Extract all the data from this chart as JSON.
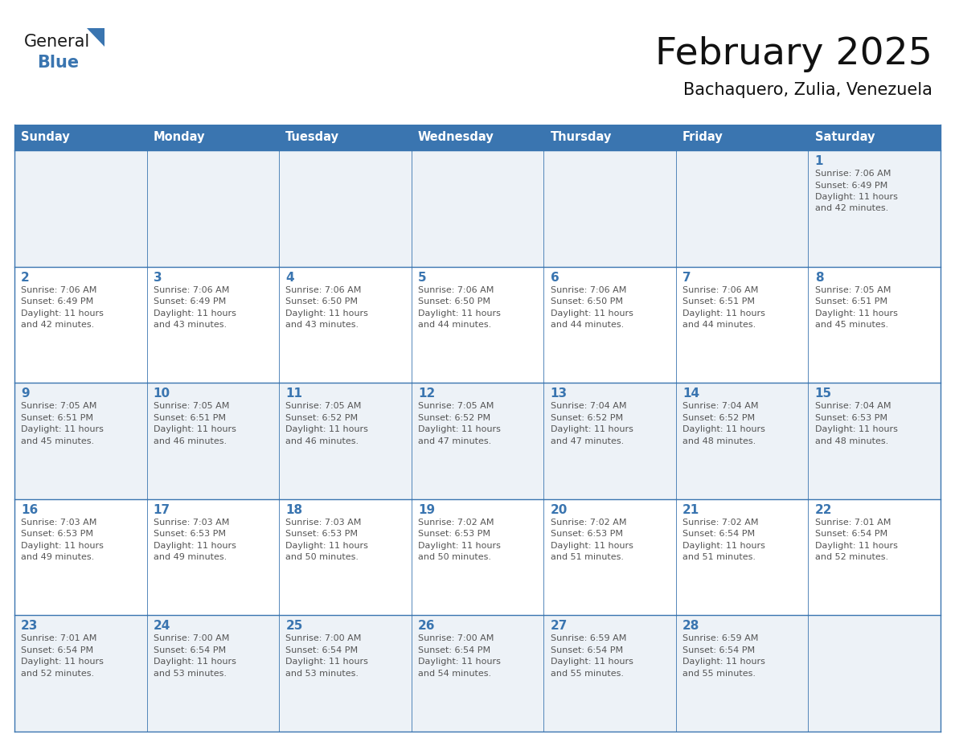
{
  "title": "February 2025",
  "subtitle": "Bachaquero, Zulia, Venezuela",
  "header_bg": "#3a75b0",
  "header_text": "#ffffff",
  "cell_bg_odd": "#edf2f7",
  "cell_bg_even": "#ffffff",
  "day_number_color": "#3a75b0",
  "text_color": "#555555",
  "border_color": "#3a75b0",
  "days_of_week": [
    "Sunday",
    "Monday",
    "Tuesday",
    "Wednesday",
    "Thursday",
    "Friday",
    "Saturday"
  ],
  "weeks": [
    [
      {
        "day": null,
        "sunrise": null,
        "sunset": null,
        "daylight_h": null,
        "daylight_m": null
      },
      {
        "day": null,
        "sunrise": null,
        "sunset": null,
        "daylight_h": null,
        "daylight_m": null
      },
      {
        "day": null,
        "sunrise": null,
        "sunset": null,
        "daylight_h": null,
        "daylight_m": null
      },
      {
        "day": null,
        "sunrise": null,
        "sunset": null,
        "daylight_h": null,
        "daylight_m": null
      },
      {
        "day": null,
        "sunrise": null,
        "sunset": null,
        "daylight_h": null,
        "daylight_m": null
      },
      {
        "day": null,
        "sunrise": null,
        "sunset": null,
        "daylight_h": null,
        "daylight_m": null
      },
      {
        "day": 1,
        "sunrise": "7:06 AM",
        "sunset": "6:49 PM",
        "daylight_h": "11 hours",
        "daylight_m": "and 42 minutes."
      }
    ],
    [
      {
        "day": 2,
        "sunrise": "7:06 AM",
        "sunset": "6:49 PM",
        "daylight_h": "11 hours",
        "daylight_m": "and 42 minutes."
      },
      {
        "day": 3,
        "sunrise": "7:06 AM",
        "sunset": "6:49 PM",
        "daylight_h": "11 hours",
        "daylight_m": "and 43 minutes."
      },
      {
        "day": 4,
        "sunrise": "7:06 AM",
        "sunset": "6:50 PM",
        "daylight_h": "11 hours",
        "daylight_m": "and 43 minutes."
      },
      {
        "day": 5,
        "sunrise": "7:06 AM",
        "sunset": "6:50 PM",
        "daylight_h": "11 hours",
        "daylight_m": "and 44 minutes."
      },
      {
        "day": 6,
        "sunrise": "7:06 AM",
        "sunset": "6:50 PM",
        "daylight_h": "11 hours",
        "daylight_m": "and 44 minutes."
      },
      {
        "day": 7,
        "sunrise": "7:06 AM",
        "sunset": "6:51 PM",
        "daylight_h": "11 hours",
        "daylight_m": "and 44 minutes."
      },
      {
        "day": 8,
        "sunrise": "7:05 AM",
        "sunset": "6:51 PM",
        "daylight_h": "11 hours",
        "daylight_m": "and 45 minutes."
      }
    ],
    [
      {
        "day": 9,
        "sunrise": "7:05 AM",
        "sunset": "6:51 PM",
        "daylight_h": "11 hours",
        "daylight_m": "and 45 minutes."
      },
      {
        "day": 10,
        "sunrise": "7:05 AM",
        "sunset": "6:51 PM",
        "daylight_h": "11 hours",
        "daylight_m": "and 46 minutes."
      },
      {
        "day": 11,
        "sunrise": "7:05 AM",
        "sunset": "6:52 PM",
        "daylight_h": "11 hours",
        "daylight_m": "and 46 minutes."
      },
      {
        "day": 12,
        "sunrise": "7:05 AM",
        "sunset": "6:52 PM",
        "daylight_h": "11 hours",
        "daylight_m": "and 47 minutes."
      },
      {
        "day": 13,
        "sunrise": "7:04 AM",
        "sunset": "6:52 PM",
        "daylight_h": "11 hours",
        "daylight_m": "and 47 minutes."
      },
      {
        "day": 14,
        "sunrise": "7:04 AM",
        "sunset": "6:52 PM",
        "daylight_h": "11 hours",
        "daylight_m": "and 48 minutes."
      },
      {
        "day": 15,
        "sunrise": "7:04 AM",
        "sunset": "6:53 PM",
        "daylight_h": "11 hours",
        "daylight_m": "and 48 minutes."
      }
    ],
    [
      {
        "day": 16,
        "sunrise": "7:03 AM",
        "sunset": "6:53 PM",
        "daylight_h": "11 hours",
        "daylight_m": "and 49 minutes."
      },
      {
        "day": 17,
        "sunrise": "7:03 AM",
        "sunset": "6:53 PM",
        "daylight_h": "11 hours",
        "daylight_m": "and 49 minutes."
      },
      {
        "day": 18,
        "sunrise": "7:03 AM",
        "sunset": "6:53 PM",
        "daylight_h": "11 hours",
        "daylight_m": "and 50 minutes."
      },
      {
        "day": 19,
        "sunrise": "7:02 AM",
        "sunset": "6:53 PM",
        "daylight_h": "11 hours",
        "daylight_m": "and 50 minutes."
      },
      {
        "day": 20,
        "sunrise": "7:02 AM",
        "sunset": "6:53 PM",
        "daylight_h": "11 hours",
        "daylight_m": "and 51 minutes."
      },
      {
        "day": 21,
        "sunrise": "7:02 AM",
        "sunset": "6:54 PM",
        "daylight_h": "11 hours",
        "daylight_m": "and 51 minutes."
      },
      {
        "day": 22,
        "sunrise": "7:01 AM",
        "sunset": "6:54 PM",
        "daylight_h": "11 hours",
        "daylight_m": "and 52 minutes."
      }
    ],
    [
      {
        "day": 23,
        "sunrise": "7:01 AM",
        "sunset": "6:54 PM",
        "daylight_h": "11 hours",
        "daylight_m": "and 52 minutes."
      },
      {
        "day": 24,
        "sunrise": "7:00 AM",
        "sunset": "6:54 PM",
        "daylight_h": "11 hours",
        "daylight_m": "and 53 minutes."
      },
      {
        "day": 25,
        "sunrise": "7:00 AM",
        "sunset": "6:54 PM",
        "daylight_h": "11 hours",
        "daylight_m": "and 53 minutes."
      },
      {
        "day": 26,
        "sunrise": "7:00 AM",
        "sunset": "6:54 PM",
        "daylight_h": "11 hours",
        "daylight_m": "and 54 minutes."
      },
      {
        "day": 27,
        "sunrise": "6:59 AM",
        "sunset": "6:54 PM",
        "daylight_h": "11 hours",
        "daylight_m": "and 55 minutes."
      },
      {
        "day": 28,
        "sunrise": "6:59 AM",
        "sunset": "6:54 PM",
        "daylight_h": "11 hours",
        "daylight_m": "and 55 minutes."
      },
      {
        "day": null,
        "sunrise": null,
        "sunset": null,
        "daylight_h": null,
        "daylight_m": null
      }
    ]
  ]
}
